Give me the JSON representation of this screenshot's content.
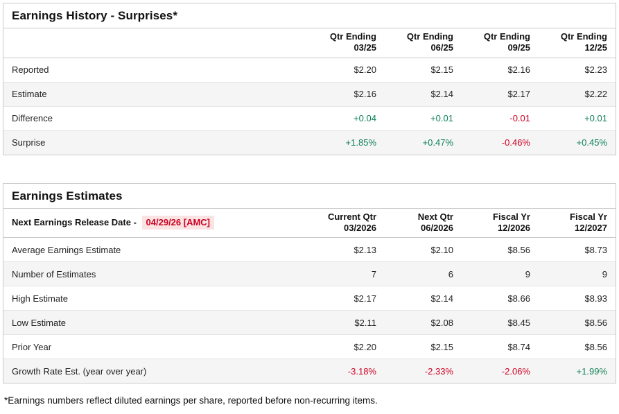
{
  "colors": {
    "positive": "#0e8156",
    "negative": "#cc0022",
    "highlight_bg": "#fbe3e3",
    "stripe_bg": "#f5f5f5",
    "card_border": "#c9c9c9",
    "row_border": "#e4e4e4"
  },
  "tables": [
    {
      "title": "Earnings History - Surprises*",
      "corner_label": "",
      "corner_highlight": "",
      "columns": [
        [
          "Qtr Ending",
          "03/25"
        ],
        [
          "Qtr Ending",
          "06/25"
        ],
        [
          "Qtr Ending",
          "09/25"
        ],
        [
          "Qtr Ending",
          "12/25"
        ]
      ],
      "rows": [
        {
          "label": "Reported",
          "values": [
            "$2.20",
            "$2.15",
            "$2.16",
            "$2.23"
          ],
          "colored": false
        },
        {
          "label": "Estimate",
          "values": [
            "$2.16",
            "$2.14",
            "$2.17",
            "$2.22"
          ],
          "colored": false
        },
        {
          "label": "Difference",
          "values": [
            "+0.04",
            "+0.01",
            "-0.01",
            "+0.01"
          ],
          "colored": true
        },
        {
          "label": "Surprise",
          "values": [
            "+1.85%",
            "+0.47%",
            "-0.46%",
            "+0.45%"
          ],
          "colored": true
        }
      ]
    },
    {
      "title": "Earnings Estimates",
      "corner_label": "Next Earnings Release Date - ",
      "corner_highlight": "04/29/26 [AMC]",
      "columns": [
        [
          "Current Qtr",
          "03/2026"
        ],
        [
          "Next Qtr",
          "06/2026"
        ],
        [
          "Fiscal Yr",
          "12/2026"
        ],
        [
          "Fiscal Yr",
          "12/2027"
        ]
      ],
      "rows": [
        {
          "label": "Average Earnings Estimate",
          "values": [
            "$2.13",
            "$2.10",
            "$8.56",
            "$8.73"
          ],
          "colored": false
        },
        {
          "label": "Number of Estimates",
          "values": [
            "7",
            "6",
            "9",
            "9"
          ],
          "colored": false
        },
        {
          "label": "High Estimate",
          "values": [
            "$2.17",
            "$2.14",
            "$8.66",
            "$8.93"
          ],
          "colored": false
        },
        {
          "label": "Low Estimate",
          "values": [
            "$2.11",
            "$2.08",
            "$8.45",
            "$8.56"
          ],
          "colored": false
        },
        {
          "label": "Prior Year",
          "values": [
            "$2.20",
            "$2.15",
            "$8.74",
            "$8.56"
          ],
          "colored": false
        },
        {
          "label": "Growth Rate Est. (year over year)",
          "values": [
            "-3.18%",
            "-2.33%",
            "-2.06%",
            "+1.99%"
          ],
          "colored": true
        }
      ]
    }
  ],
  "page": {
    "footnote": "*Earnings numbers reflect diluted earnings per share, reported before non-recurring items."
  }
}
